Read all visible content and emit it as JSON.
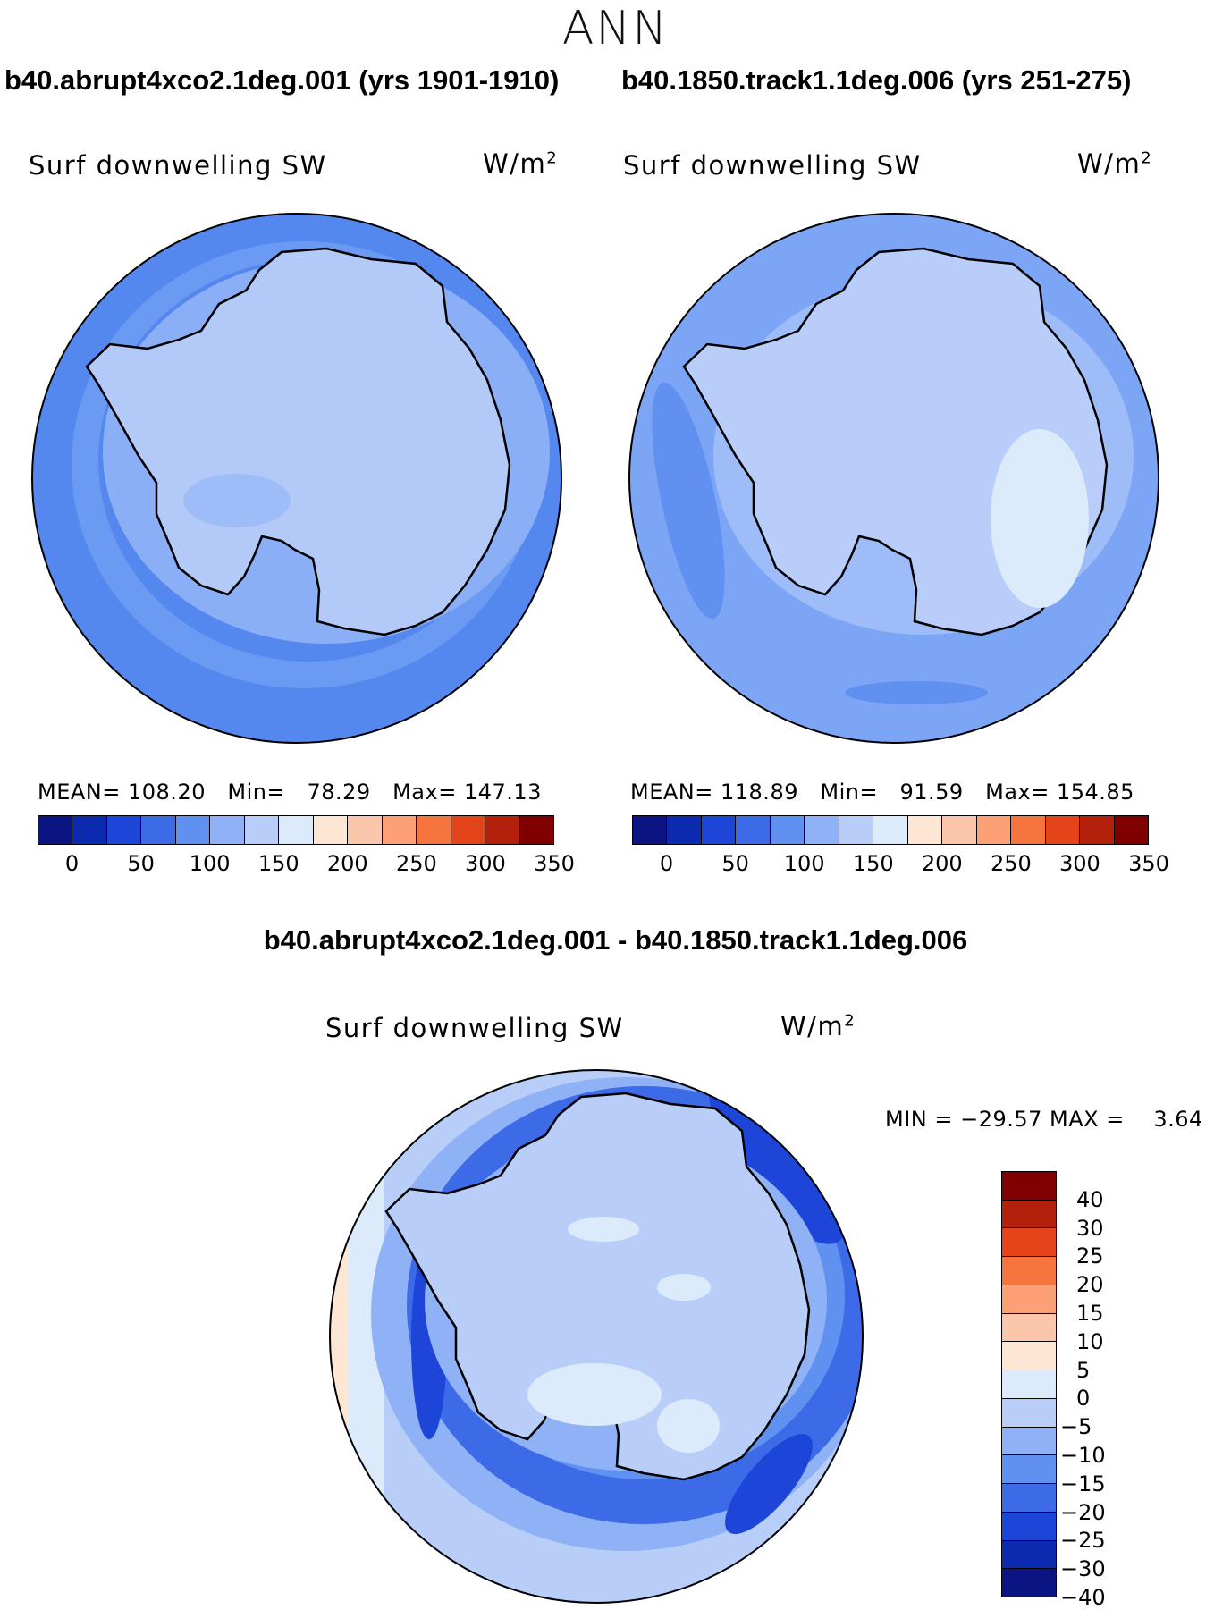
{
  "title": "ANN",
  "panels": [
    {
      "case": "b40.abrupt4xco2.1deg.001 (yrs 1901-1910)",
      "variable": "Surf downwelling SW",
      "units_base": "W/m",
      "units_sup": "2",
      "stats": {
        "mean_label": "MEAN=",
        "mean": "108.20",
        "min_label": "Min=",
        "min": "78.29",
        "max_label": "Max=",
        "max": "147.13"
      },
      "field": {
        "ocean_outer": "#5588ee",
        "ocean_ring": "#6b9af3",
        "coast_band": "#8aaff6",
        "ice": "#b3c9f8"
      }
    },
    {
      "case": "b40.1850.track1.1deg.006 (yrs 251-275)",
      "variable": "Surf downwelling SW",
      "units_base": "W/m",
      "units_sup": "2",
      "stats": {
        "mean_label": "MEAN=",
        "mean": "118.89",
        "min_label": "Min=",
        "min": "91.59",
        "max_label": "Max=",
        "max": "154.85"
      },
      "field": {
        "ocean_outer": "#7ca6f5",
        "ocean_ring": "#7ca6f5",
        "coast_band": "#9ebcf7",
        "ice": "#b8cdf9"
      }
    }
  ],
  "colorbar": {
    "colors": [
      "#0a1483",
      "#0b2ab0",
      "#1d46d8",
      "#3d6be8",
      "#6090f0",
      "#8eb2f5",
      "#b8cef8",
      "#dcebfb",
      "#fde7d4",
      "#fcc6aa",
      "#fba077",
      "#f6743d",
      "#e5431a",
      "#b3200b",
      "#800000"
    ],
    "ticks": [
      "0",
      "50",
      "100",
      "150",
      "200",
      "250",
      "300",
      "350"
    ]
  },
  "diff": {
    "title": "b40.abrupt4xco2.1deg.001 - b40.1850.track1.1deg.006",
    "variable": "Surf downwelling SW",
    "units_base": "W/m",
    "units_sup": "2",
    "minmax": "MIN = −29.57 MAX =    3.64",
    "colors_top_to_bottom": [
      "#800000",
      "#b3200b",
      "#e5431a",
      "#f6743d",
      "#fba077",
      "#fcc6aa",
      "#fde7d4",
      "#dcebfb",
      "#b8cef8",
      "#8eb2f5",
      "#6090f0",
      "#3d6be8",
      "#1d46d8",
      "#0b2ab0",
      "#0a1483"
    ],
    "ticks": [
      "40",
      "30",
      "25",
      "20",
      "15",
      "10",
      "5",
      "0",
      "−5",
      "−10",
      "−15",
      "−20",
      "−25",
      "−30",
      "−40"
    ]
  }
}
